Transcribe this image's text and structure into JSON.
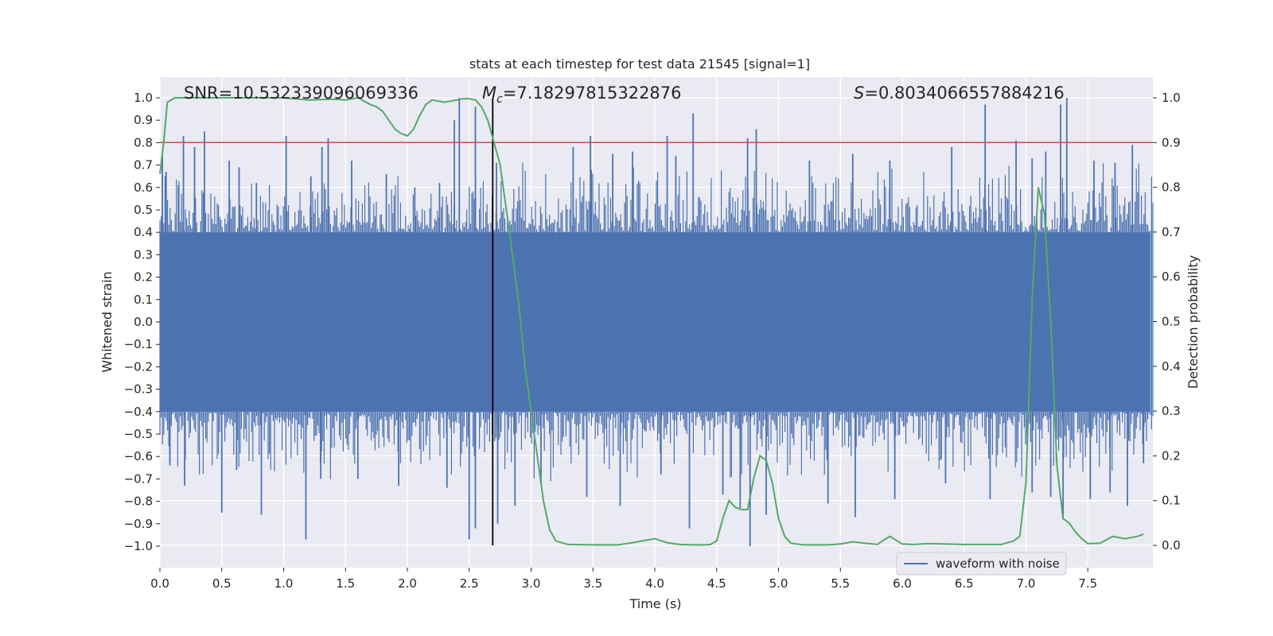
{
  "chart_data": {
    "type": "line",
    "title": "stats at each timestep for test data 21545 [signal=1]",
    "xlabel": "Time (s)",
    "ylabel": "Whitened strain",
    "y2label": "Detection probability",
    "xlim": [
      0,
      8
    ],
    "ylim": [
      -1.1,
      1.1
    ],
    "y2lim": [
      -0.05,
      1.05
    ],
    "xticks": [
      0.0,
      0.5,
      1.0,
      1.5,
      2.0,
      2.5,
      3.0,
      3.5,
      4.0,
      4.5,
      5.0,
      5.5,
      6.0,
      6.5,
      7.0,
      7.5
    ],
    "xtick_labels": [
      "0.0",
      "0.5",
      "1.0",
      "1.5",
      "2.0",
      "2.5",
      "3.0",
      "3.5",
      "4.0",
      "4.5",
      "5.0",
      "5.5",
      "6.0",
      "6.5",
      "7.0",
      "7.5"
    ],
    "yticks": [
      1.0,
      0.9,
      0.8,
      0.7,
      0.6,
      0.5,
      0.4,
      0.3,
      0.2,
      0.1,
      0.0,
      -0.1,
      -0.2,
      -0.3,
      -0.4,
      -0.5,
      -0.6,
      -0.7,
      -0.8,
      -0.9,
      -1.0
    ],
    "ytick_labels": [
      "1.0",
      "0.9",
      "0.8",
      "0.7",
      "0.6",
      "0.5",
      "0.4",
      "0.3",
      "0.2",
      "0.1",
      "0.0",
      "−0.1",
      "−0.2",
      "−0.3",
      "−0.4",
      "−0.5",
      "−0.6",
      "−0.7",
      "−0.8",
      "−0.9",
      "−1.0"
    ],
    "y2ticks": [
      1.0,
      0.9,
      0.8,
      0.7,
      0.6,
      0.5,
      0.4,
      0.3,
      0.2,
      0.1,
      0.0
    ],
    "y2tick_labels": [
      "1.0",
      "0.9",
      "0.8",
      "0.7",
      "0.6",
      "0.5",
      "0.4",
      "0.3",
      "0.2",
      "0.1",
      "0.0"
    ],
    "annotations": {
      "snr": "SNR=10.532339096069336",
      "mc_symbol": "M",
      "mc_sub": "c",
      "mc_value": "=7.18297815322876",
      "s_symbol": "S",
      "s_value": "=0.8034066557884216"
    },
    "threshold_line": {
      "y2": 0.9,
      "color": "#c44e52"
    },
    "event_time": 2.69,
    "series": [
      {
        "name": "waveform with noise",
        "axis": "left",
        "color": "#4c72b0",
        "band": {
          "x_start": 0.0,
          "x_end": 8.0,
          "core_low": -0.4,
          "core_high": 0.4
        },
        "spikes": [
          {
            "x": 0.02,
            "y": 0.74
          },
          {
            "x": 0.05,
            "y": 0.67
          },
          {
            "x": 0.15,
            "y": 0.61
          },
          {
            "x": 0.19,
            "y": 0.83
          },
          {
            "x": 0.28,
            "y": 0.78
          },
          {
            "x": 0.36,
            "y": 0.85
          },
          {
            "x": 0.56,
            "y": 0.72
          },
          {
            "x": 0.64,
            "y": 0.69
          },
          {
            "x": 0.78,
            "y": 0.62
          },
          {
            "x": 1.02,
            "y": 0.83
          },
          {
            "x": 1.22,
            "y": 0.65
          },
          {
            "x": 1.31,
            "y": 0.78
          },
          {
            "x": 1.36,
            "y": 0.82
          },
          {
            "x": 1.55,
            "y": 0.72
          },
          {
            "x": 1.83,
            "y": 0.66
          },
          {
            "x": 2.06,
            "y": 0.6
          },
          {
            "x": 2.26,
            "y": 0.62
          },
          {
            "x": 2.38,
            "y": 0.9
          },
          {
            "x": 2.42,
            "y": 1.0
          },
          {
            "x": 2.55,
            "y": 0.96
          },
          {
            "x": 2.72,
            "y": 0.71
          },
          {
            "x": 3.34,
            "y": 0.78
          },
          {
            "x": 3.48,
            "y": 0.83
          },
          {
            "x": 3.66,
            "y": 0.75
          },
          {
            "x": 3.82,
            "y": 0.76
          },
          {
            "x": 4.1,
            "y": 0.83
          },
          {
            "x": 4.17,
            "y": 0.74
          },
          {
            "x": 4.31,
            "y": 0.93
          },
          {
            "x": 4.75,
            "y": 0.82
          },
          {
            "x": 4.82,
            "y": 0.86
          },
          {
            "x": 5.25,
            "y": 0.72
          },
          {
            "x": 5.6,
            "y": 0.75
          },
          {
            "x": 5.9,
            "y": 0.72
          },
          {
            "x": 6.4,
            "y": 0.78
          },
          {
            "x": 6.67,
            "y": 0.97
          },
          {
            "x": 6.92,
            "y": 0.81
          },
          {
            "x": 7.05,
            "y": 0.73
          },
          {
            "x": 7.16,
            "y": 0.76
          },
          {
            "x": 7.28,
            "y": 0.97
          },
          {
            "x": 7.33,
            "y": 1.0
          },
          {
            "x": 7.55,
            "y": 0.72
          },
          {
            "x": 7.72,
            "y": 0.71
          },
          {
            "x": 7.86,
            "y": 0.79
          },
          {
            "x": 0.08,
            "y": -0.64
          },
          {
            "x": 0.2,
            "y": -0.73
          },
          {
            "x": 0.5,
            "y": -0.85
          },
          {
            "x": 0.62,
            "y": -0.66
          },
          {
            "x": 0.82,
            "y": -0.86
          },
          {
            "x": 1.18,
            "y": -0.97
          },
          {
            "x": 1.3,
            "y": -0.7
          },
          {
            "x": 1.6,
            "y": -0.7
          },
          {
            "x": 1.93,
            "y": -0.73
          },
          {
            "x": 2.32,
            "y": -0.74
          },
          {
            "x": 2.5,
            "y": -0.97
          },
          {
            "x": 2.55,
            "y": -0.92
          },
          {
            "x": 2.73,
            "y": -0.9
          },
          {
            "x": 2.87,
            "y": -0.82
          },
          {
            "x": 3.08,
            "y": -0.72
          },
          {
            "x": 3.45,
            "y": -0.78
          },
          {
            "x": 3.72,
            "y": -0.82
          },
          {
            "x": 4.05,
            "y": -0.68
          },
          {
            "x": 4.28,
            "y": -0.92
          },
          {
            "x": 4.55,
            "y": -0.77
          },
          {
            "x": 4.69,
            "y": -0.83
          },
          {
            "x": 4.77,
            "y": -1.0
          },
          {
            "x": 4.9,
            "y": -0.86
          },
          {
            "x": 5.4,
            "y": -0.81
          },
          {
            "x": 5.62,
            "y": -0.87
          },
          {
            "x": 5.94,
            "y": -0.79
          },
          {
            "x": 6.35,
            "y": -0.72
          },
          {
            "x": 6.71,
            "y": -0.79
          },
          {
            "x": 7.05,
            "y": -0.76
          },
          {
            "x": 7.2,
            "y": -0.78
          },
          {
            "x": 7.3,
            "y": -0.88
          },
          {
            "x": 7.52,
            "y": -0.79
          },
          {
            "x": 7.68,
            "y": -0.76
          },
          {
            "x": 7.82,
            "y": -0.82
          },
          {
            "x": 7.95,
            "y": -0.63
          }
        ]
      },
      {
        "name": "Detection probability",
        "axis": "right",
        "color": "#55a868",
        "x": [
          0.0,
          0.03,
          0.06,
          0.12,
          0.2,
          0.4,
          0.6,
          0.8,
          1.0,
          1.2,
          1.4,
          1.5,
          1.6,
          1.7,
          1.75,
          1.8,
          1.85,
          1.9,
          1.95,
          2.0,
          2.05,
          2.1,
          2.15,
          2.2,
          2.3,
          2.4,
          2.45,
          2.5,
          2.55,
          2.6,
          2.65,
          2.7,
          2.75,
          2.8,
          2.85,
          2.9,
          2.95,
          3.0,
          3.05,
          3.1,
          3.15,
          3.2,
          3.3,
          3.5,
          3.7,
          3.8,
          3.9,
          4.0,
          4.1,
          4.2,
          4.3,
          4.4,
          4.45,
          4.5,
          4.55,
          4.6,
          4.65,
          4.7,
          4.75,
          4.8,
          4.85,
          4.9,
          4.95,
          5.0,
          5.05,
          5.1,
          5.2,
          5.4,
          5.5,
          5.6,
          5.7,
          5.8,
          5.85,
          5.9,
          6.0,
          6.1,
          6.2,
          6.5,
          6.8,
          6.9,
          6.95,
          7.0,
          7.05,
          7.1,
          7.15,
          7.2,
          7.25,
          7.3,
          7.35,
          7.4,
          7.45,
          7.5,
          7.6,
          7.7,
          7.8,
          7.9,
          7.95
        ],
        "y": [
          0.83,
          0.9,
          0.99,
          1.0,
          1.0,
          1.0,
          1.0,
          1.0,
          1.0,
          0.995,
          0.997,
          0.995,
          1.0,
          0.985,
          0.98,
          0.97,
          0.95,
          0.93,
          0.92,
          0.915,
          0.93,
          0.96,
          0.985,
          0.995,
          0.99,
          0.995,
          0.998,
          0.998,
          0.995,
          0.98,
          0.95,
          0.9,
          0.85,
          0.75,
          0.65,
          0.54,
          0.4,
          0.3,
          0.2,
          0.1,
          0.035,
          0.01,
          0.002,
          0.001,
          0.001,
          0.005,
          0.01,
          0.015,
          0.006,
          0.002,
          0.001,
          0.001,
          0.002,
          0.01,
          0.06,
          0.1,
          0.085,
          0.08,
          0.08,
          0.15,
          0.2,
          0.19,
          0.14,
          0.06,
          0.02,
          0.005,
          0.001,
          0.001,
          0.003,
          0.008,
          0.005,
          0.002,
          0.012,
          0.02,
          0.003,
          0.002,
          0.004,
          0.002,
          0.002,
          0.01,
          0.02,
          0.14,
          0.55,
          0.8,
          0.74,
          0.5,
          0.18,
          0.06,
          0.05,
          0.03,
          0.015,
          0.004,
          0.005,
          0.02,
          0.015,
          0.02,
          0.025
        ]
      }
    ],
    "legend": {
      "placement": "lower-right",
      "entries": [
        "waveform with noise"
      ]
    }
  }
}
